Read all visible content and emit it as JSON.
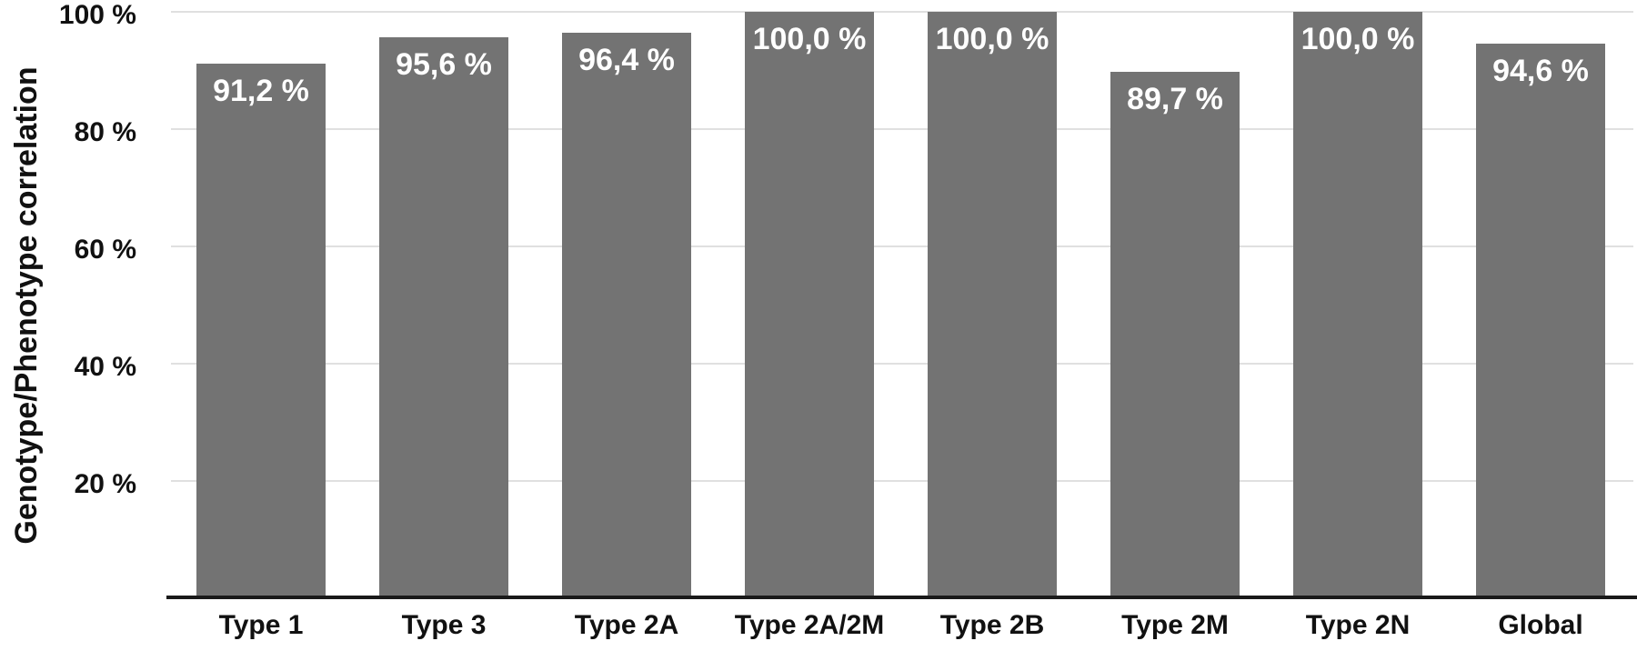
{
  "chart_data": {
    "type": "bar",
    "title": "",
    "xlabel": "",
    "ylabel": "Genotype/Phenotype correlation",
    "categories": [
      "Type 1",
      "Type 3",
      "Type 2A",
      "Type 2A/2M",
      "Type 2B",
      "Type 2M",
      "Type 2N",
      "Global"
    ],
    "values": [
      91.2,
      95.6,
      96.4,
      100.0,
      100.0,
      89.7,
      100.0,
      94.6
    ],
    "value_labels": [
      "91,2 %",
      "95,6 %",
      "96,4 %",
      "100,0 %",
      "100,0 %",
      "89,7 %",
      "100,0 %",
      "94,6 %"
    ],
    "ylim": [
      0,
      100
    ],
    "yticks": [
      20,
      40,
      60,
      80,
      100
    ],
    "ytick_labels": [
      "20 %",
      "40 %",
      "60 %",
      "80 %",
      "100 %"
    ],
    "grid": "horizontal",
    "legend": "none",
    "colors": {
      "bar": "#737373",
      "data_label": "#ffffff",
      "gridline": "#e0e0e0",
      "axis_line": "#1a1a1a",
      "text": "#111111",
      "background": "#ffffff"
    }
  }
}
